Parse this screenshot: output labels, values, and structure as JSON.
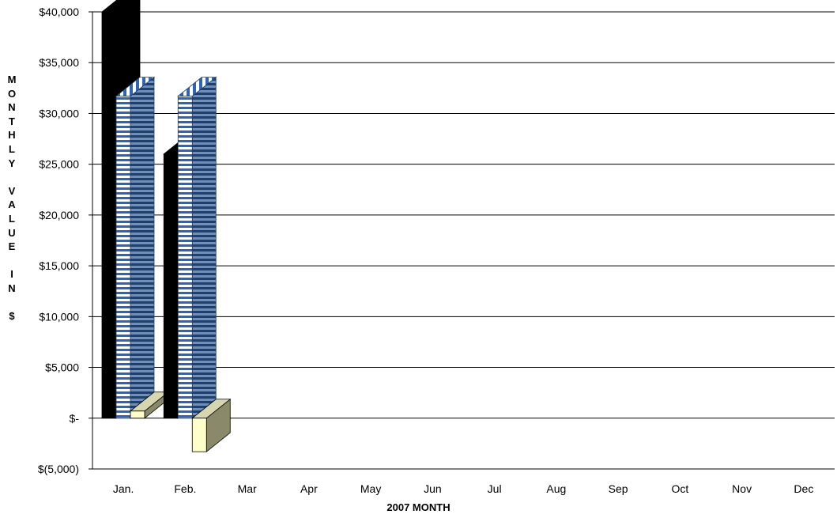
{
  "chart_data": {
    "type": "bar",
    "categories": [
      "Jan.",
      "Feb.",
      "Mar",
      "Apr",
      "May",
      "Jun",
      "Jul",
      "Aug",
      "Sep",
      "Oct",
      "Nov",
      "Dec"
    ],
    "series": [
      {
        "values": [
          40000,
          26000,
          null,
          null,
          null,
          null,
          null,
          null,
          null,
          null,
          null,
          null
        ],
        "color": "#000000"
      },
      {
        "values": [
          31700,
          31700,
          null,
          null,
          null,
          null,
          null,
          null,
          null,
          null,
          null,
          null
        ],
        "color": "#3a6fb8"
      },
      {
        "values": [
          700,
          -3300,
          null,
          null,
          null,
          null,
          null,
          null,
          null,
          null,
          null,
          null
        ],
        "color": "#ffffcc"
      }
    ],
    "ylim": [
      -5000,
      40000
    ],
    "ytick_values": [
      -5000,
      0,
      5000,
      10000,
      15000,
      20000,
      25000,
      30000,
      35000,
      40000
    ],
    "ytick_labels": [
      "$(5,000)",
      "$-",
      "$5,000",
      "$10,000",
      "$15,000",
      "$20,000",
      "$25,000",
      "$30,000",
      "$35,000",
      "$40,000"
    ],
    "xlabel": "2007 MONTH",
    "ylabel": "M O N T H L Y   V A L U E   I N   $",
    "grid": true,
    "legend": "none"
  },
  "y_axis_letters": [
    "M",
    "O",
    "N",
    "T",
    "H",
    "L",
    "Y",
    " ",
    "V",
    "A",
    "L",
    "U",
    "E",
    " ",
    "I",
    "N",
    " ",
    "$"
  ]
}
